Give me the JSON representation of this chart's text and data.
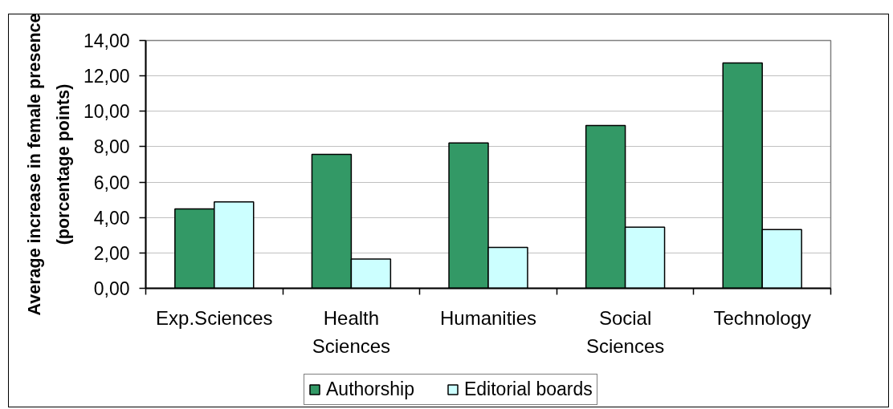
{
  "chart_data": {
    "type": "bar",
    "ylabel": "Average increase in female presence\n(porcentage points)",
    "categories": [
      "Exp.Sciences",
      "Health Sciences",
      "Humanities",
      "Social Sciences",
      "Technology"
    ],
    "series": [
      {
        "name": "Authorship",
        "color": "#339966",
        "values": [
          4.48,
          7.57,
          8.21,
          9.2,
          12.73
        ]
      },
      {
        "name": "Editorial boards",
        "color": "#ccffff",
        "values": [
          4.88,
          1.65,
          2.31,
          3.46,
          3.32
        ]
      }
    ],
    "ylim": [
      0,
      14
    ],
    "yticks": [
      {
        "value": 0,
        "label": "0,00"
      },
      {
        "value": 2,
        "label": "2,00"
      },
      {
        "value": 4,
        "label": "4,00"
      },
      {
        "value": 6,
        "label": "6,00"
      },
      {
        "value": 8,
        "label": "8,00"
      },
      {
        "value": 10,
        "label": "10,00"
      },
      {
        "value": 12,
        "label": "12,00"
      },
      {
        "value": 14,
        "label": "14,00"
      }
    ],
    "grid": "y",
    "legend": "bottom"
  }
}
